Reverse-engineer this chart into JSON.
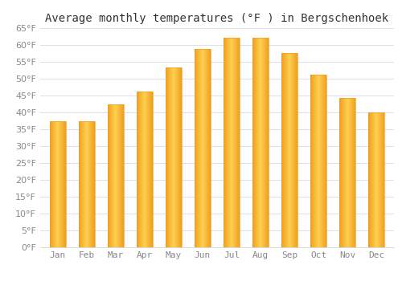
{
  "title": "Average monthly temperatures (°F ) in Bergschenhoek",
  "months": [
    "Jan",
    "Feb",
    "Mar",
    "Apr",
    "May",
    "Jun",
    "Jul",
    "Aug",
    "Sep",
    "Oct",
    "Nov",
    "Dec"
  ],
  "values": [
    37.4,
    37.4,
    42.3,
    46.2,
    53.4,
    58.8,
    62.1,
    62.2,
    57.6,
    51.1,
    44.4,
    40.1
  ],
  "bar_color_center": "#FFD050",
  "bar_color_edge": "#F0A020",
  "background_color": "#FFFFFF",
  "grid_color": "#DDDDEE",
  "text_color": "#888888",
  "title_color": "#333333",
  "ylim": [
    0,
    65
  ],
  "yticks": [
    0,
    5,
    10,
    15,
    20,
    25,
    30,
    35,
    40,
    45,
    50,
    55,
    60,
    65
  ],
  "title_fontsize": 10,
  "tick_fontsize": 8,
  "bar_width": 0.55
}
